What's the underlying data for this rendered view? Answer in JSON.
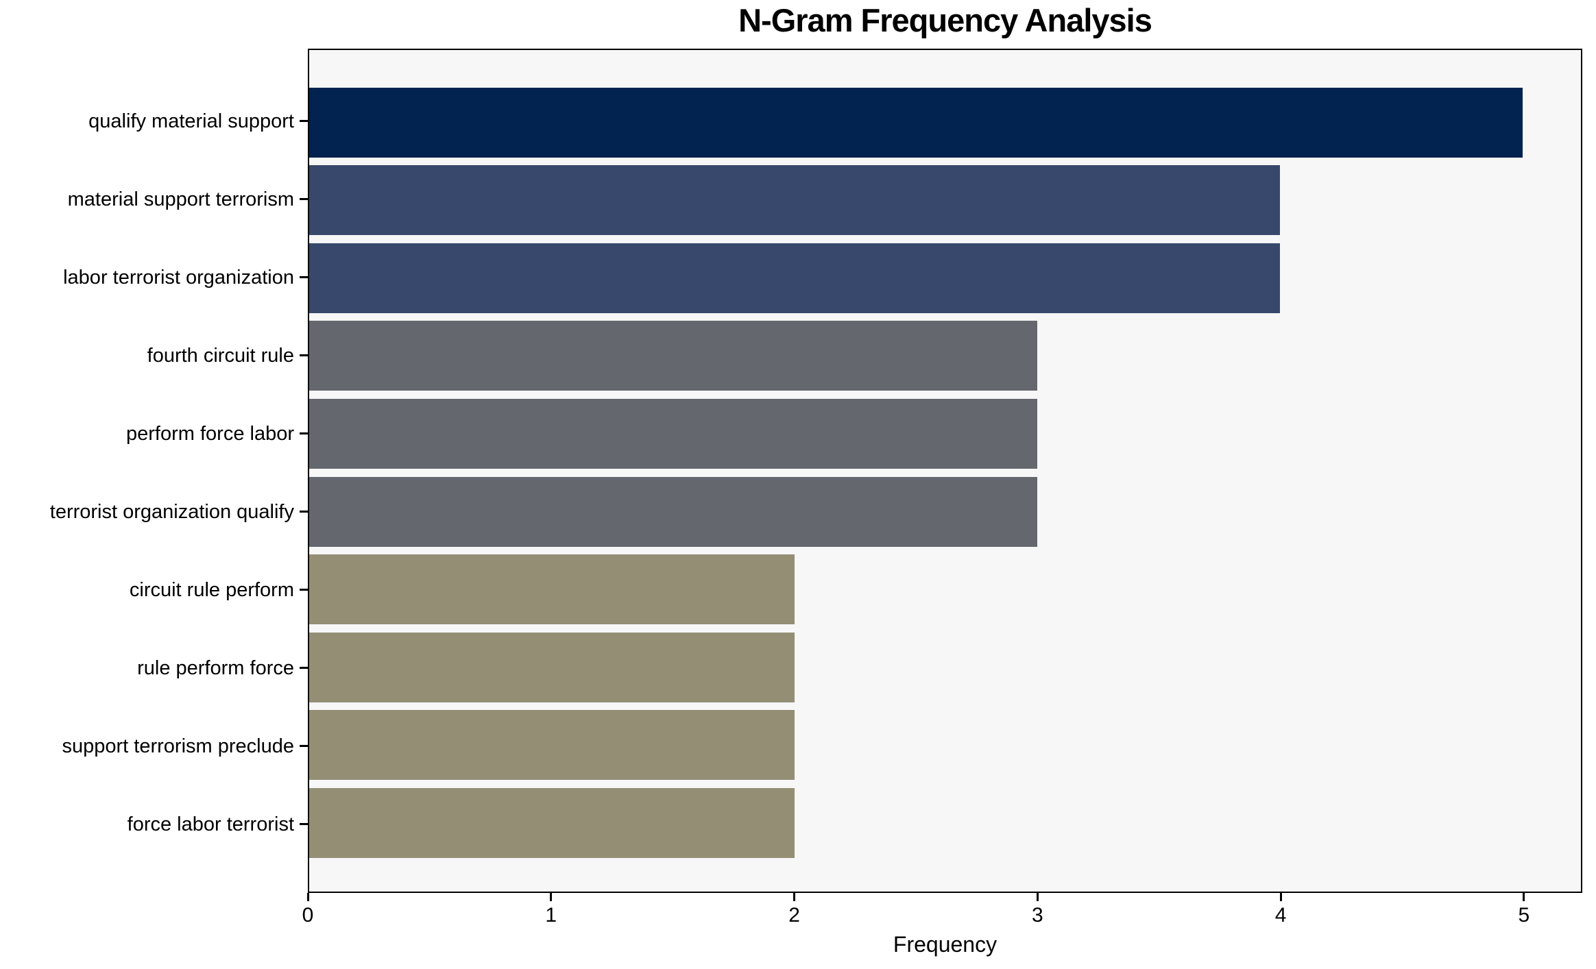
{
  "chart_data": {
    "type": "bar",
    "orientation": "horizontal",
    "title": "N-Gram Frequency Analysis",
    "xlabel": "Frequency",
    "ylabel": "",
    "categories": [
      "qualify material support",
      "material support terrorism",
      "labor terrorist organization",
      "fourth circuit rule",
      "perform force labor",
      "terrorist organization qualify",
      "circuit rule perform",
      "rule perform force",
      "support terrorism preclude",
      "force labor terrorist"
    ],
    "values": [
      5,
      4,
      4,
      3,
      3,
      3,
      2,
      2,
      2,
      2
    ],
    "xticks": [
      "0",
      "1",
      "2",
      "3",
      "4",
      "5"
    ],
    "xtick_values": [
      0,
      1,
      2,
      3,
      4,
      5
    ],
    "xlim": [
      0,
      5.24
    ],
    "grid": false,
    "legend": false,
    "bar_colors": [
      "#022250",
      "#38486c",
      "#38486c",
      "#65676e",
      "#65676e",
      "#65676e",
      "#948e75",
      "#948e75",
      "#948e75",
      "#948e75"
    ],
    "plot_bg": "#f7f7f8",
    "spine_color": "#000000",
    "text_color": "#000000"
  }
}
